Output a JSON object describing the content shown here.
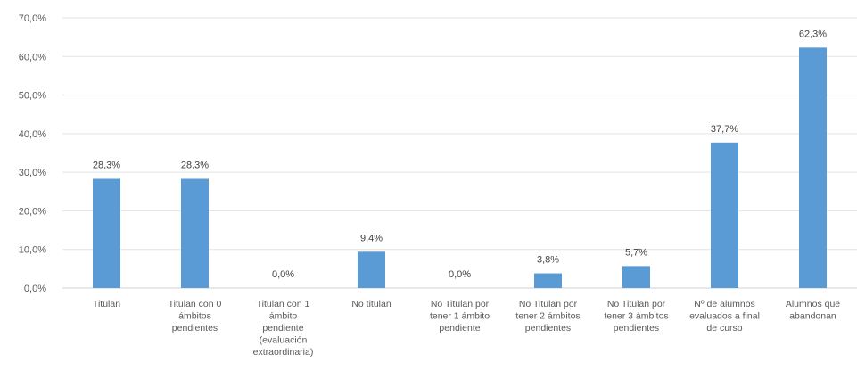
{
  "chart_data": {
    "type": "bar",
    "categories": [
      [
        "Titulan"
      ],
      [
        "Titulan con 0",
        "ámbitos",
        "pendientes"
      ],
      [
        "Titulan con 1",
        "ámbito",
        "pendiente",
        "(evaluación",
        "extraordinaria)"
      ],
      [
        "No titulan"
      ],
      [
        "No Titulan por",
        "tener 1 ámbito",
        "pendiente"
      ],
      [
        "No Titulan por",
        "tener 2 ámbitos",
        "pendientes"
      ],
      [
        "No Titulan por",
        "tener 3 ámbitos",
        "pendientes"
      ],
      [
        "Nº de alumnos",
        "evaluados a final",
        "de curso"
      ],
      [
        "Alumnos que",
        "abandonan"
      ]
    ],
    "values": [
      28.3,
      28.3,
      0.0,
      9.4,
      0.0,
      3.8,
      5.7,
      37.7,
      62.3
    ],
    "data_labels": [
      "28,3%",
      "28,3%",
      "0,0%",
      "9,4%",
      "0,0%",
      "3,8%",
      "5,7%",
      "37,7%",
      "62,3%"
    ],
    "y_ticks": [
      0,
      10,
      20,
      30,
      40,
      50,
      60,
      70
    ],
    "y_tick_labels": [
      "0,0%",
      "10,0%",
      "20,0%",
      "30,0%",
      "40,0%",
      "50,0%",
      "60,0%",
      "70,0%"
    ],
    "ylim": [
      0,
      70
    ],
    "grid": true,
    "legend": "none",
    "bar_color": "#5b9bd5"
  }
}
